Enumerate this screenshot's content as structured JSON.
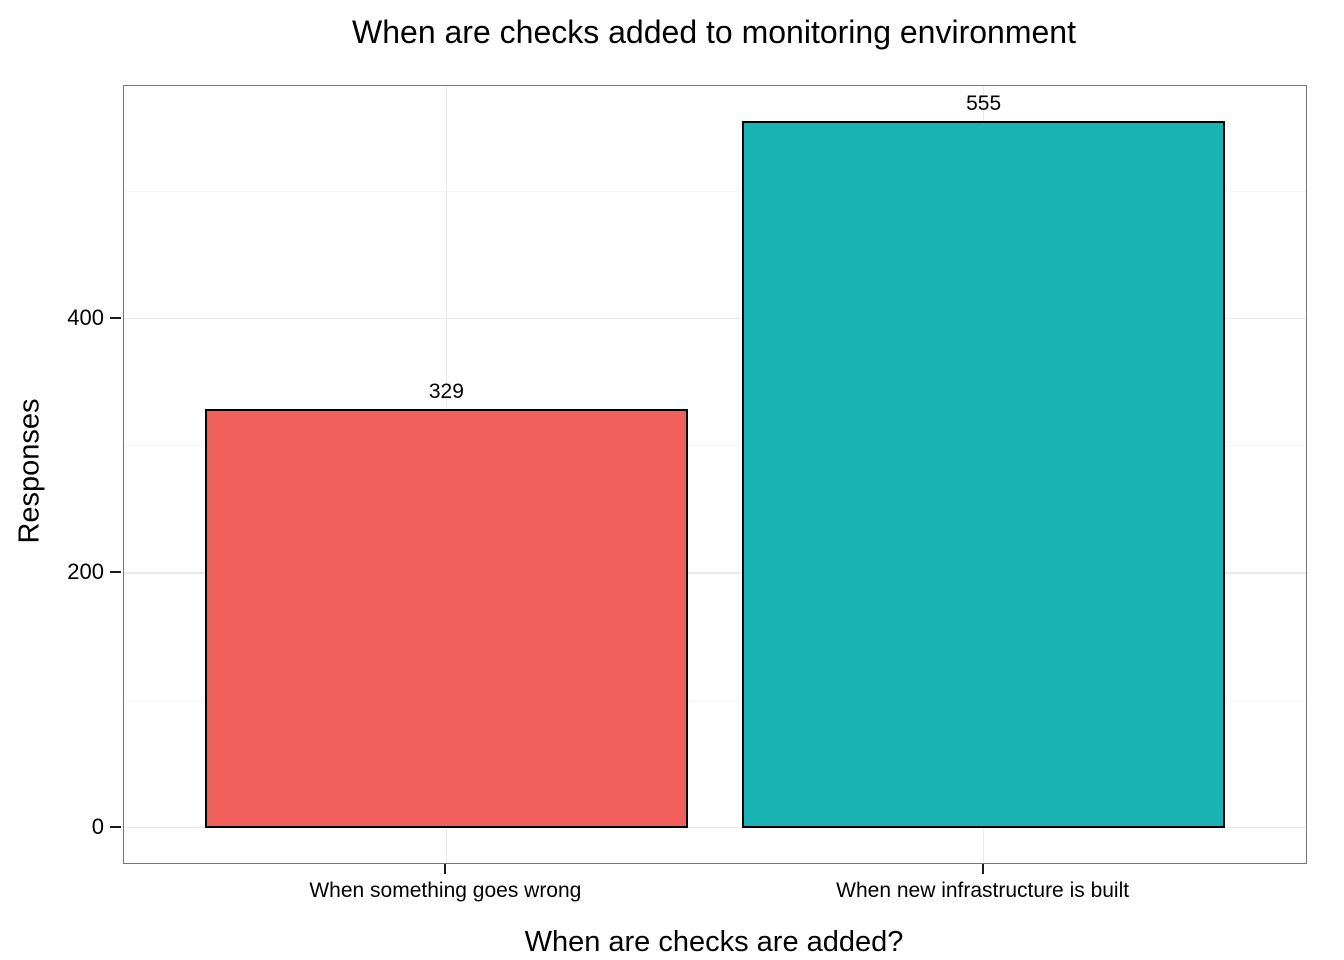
{
  "chart_data": {
    "type": "bar",
    "title": "When are checks added to monitoring environment",
    "xlabel": "When are checks are added?",
    "ylabel": "Responses",
    "categories": [
      "When something goes wrong",
      "When new infrastructure is built"
    ],
    "values": [
      329,
      555
    ],
    "bar_colors": [
      "#F2605C",
      "#1AB3B5"
    ],
    "bar_border_color": "#000000",
    "yticks": [
      0,
      200,
      400
    ],
    "yminor": [
      100,
      300,
      500
    ],
    "ylim": [
      -27.75,
      582.75
    ],
    "x_positions": [
      1,
      2
    ],
    "x_range": [
      0.4,
      2.6
    ],
    "bar_width_frac": 0.9,
    "grid": "on",
    "legend": "none",
    "major_grid_color": "#EAEAEA",
    "minor_grid_color": "#F5F5F5",
    "panel_border_color": "#757575",
    "panel_bg": "#FFFFFF"
  }
}
